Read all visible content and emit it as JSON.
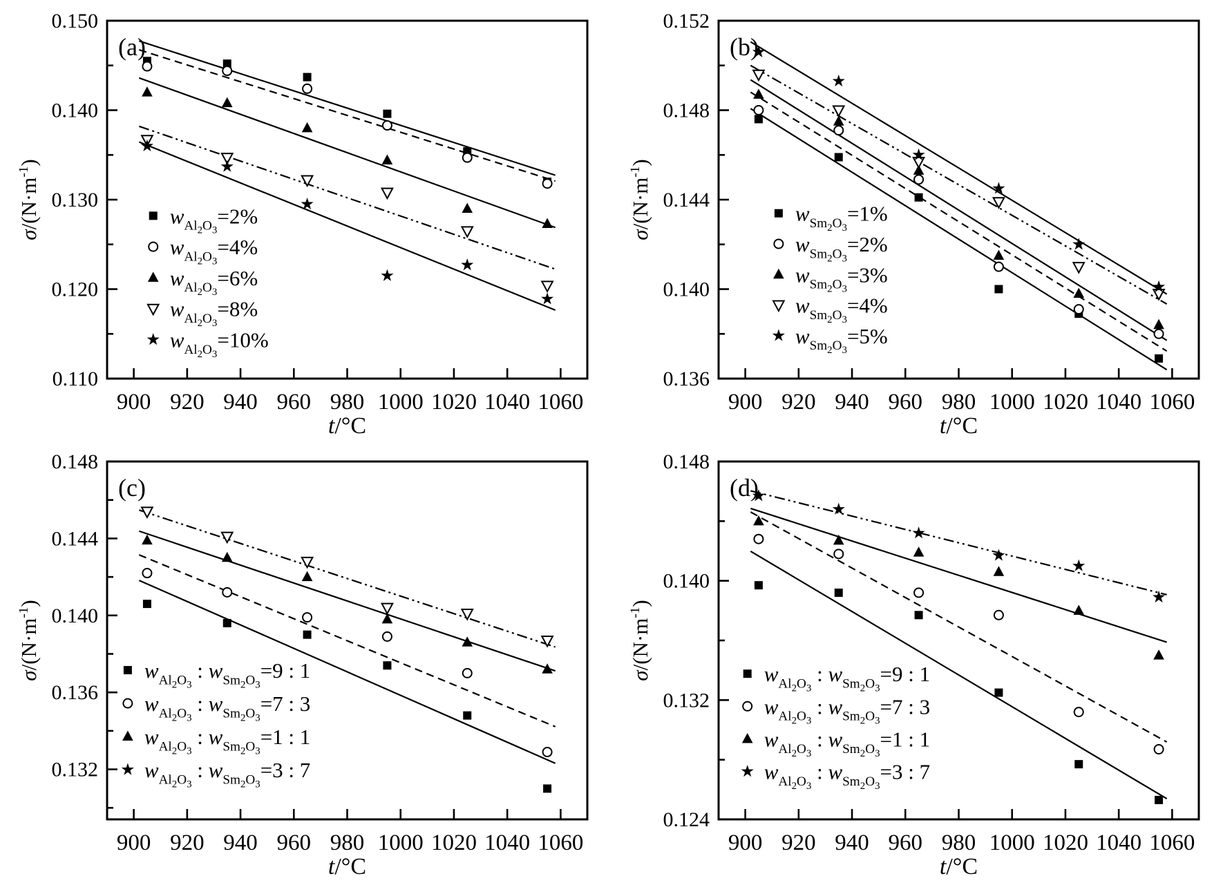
{
  "figure": {
    "background": "#ffffff",
    "ink": "#000000",
    "description": "Four-panel scatter figure: surface tension vs temperature for flux compositions",
    "panel_ids": [
      "a",
      "b",
      "c",
      "d"
    ]
  },
  "chart_data": [
    {
      "id": "a",
      "type": "scatter",
      "panel_label": "(a)",
      "xlabel": [
        {
          "s": "i",
          "t": "t"
        },
        {
          "s": "n",
          "t": "/°C"
        }
      ],
      "ylabel": [
        {
          "s": "i",
          "t": "σ"
        },
        {
          "s": "n",
          "t": "/(N·m"
        },
        {
          "s": "sup",
          "t": "-1"
        },
        {
          "s": "n",
          "t": ")"
        }
      ],
      "xlim": [
        890,
        1070
      ],
      "ylim": [
        0.11,
        0.15
      ],
      "xticks": [
        {
          "v": 900,
          "label": "900"
        },
        {
          "v": 920,
          "label": "920"
        },
        {
          "v": 940,
          "label": "940"
        },
        {
          "v": 960,
          "label": "960"
        },
        {
          "v": 980,
          "label": "980"
        },
        {
          "v": 1000,
          "label": "1000"
        },
        {
          "v": 1020,
          "label": "1020"
        },
        {
          "v": 1040,
          "label": "1040"
        },
        {
          "v": 1060,
          "label": "1060"
        }
      ],
      "yticks_major": [
        {
          "v": 0.11,
          "label": "0.110"
        },
        {
          "v": 0.12,
          "label": "0.120"
        },
        {
          "v": 0.13,
          "label": "0.130"
        },
        {
          "v": 0.14,
          "label": "0.140"
        },
        {
          "v": 0.15,
          "label": "0.150"
        }
      ],
      "yticks_minor": [
        0.115,
        0.125,
        0.135,
        0.145
      ],
      "x": [
        905,
        935,
        965,
        995,
        1025,
        1055
      ],
      "fit_span": [
        902,
        1058
      ],
      "legend": {
        "x_frac": 0.096,
        "y_frac_start": 0.545,
        "row_step_frac": 0.0865
      },
      "series": [
        {
          "name": "w(Al2O3)=2%",
          "marker": "square",
          "line": "solid",
          "label": [
            {
              "s": "i",
              "t": "w"
            },
            {
              "s": "sub",
              "t": "Al2O3"
            },
            {
              "s": "n",
              "t": "=2%"
            }
          ],
          "values": [
            0.1455,
            0.1452,
            0.1437,
            0.1396,
            0.1354,
            0.132
          ]
        },
        {
          "name": "w(Al2O3)=4%",
          "marker": "circle-open",
          "line": "dashed",
          "label": [
            {
              "s": "i",
              "t": "w"
            },
            {
              "s": "sub",
              "t": "Al2O3"
            },
            {
              "s": "n",
              "t": "=4%"
            }
          ],
          "values": [
            0.1449,
            0.1444,
            0.1424,
            0.1383,
            0.1347,
            0.1318
          ]
        },
        {
          "name": "w(Al2O3)=6%",
          "marker": "triangle-up",
          "line": "solid",
          "label": [
            {
              "s": "i",
              "t": "w"
            },
            {
              "s": "sub",
              "t": "Al2O3"
            },
            {
              "s": "n",
              "t": "=6%"
            }
          ],
          "values": [
            0.142,
            0.1408,
            0.138,
            0.1344,
            0.129,
            0.1273
          ]
        },
        {
          "name": "w(Al2O3)=8%",
          "marker": "triangle-down-open",
          "line": "dashdot",
          "label": [
            {
              "s": "i",
              "t": "w"
            },
            {
              "s": "sub",
              "t": "Al2O3"
            },
            {
              "s": "n",
              "t": "=8%"
            }
          ],
          "values": [
            0.1367,
            0.1347,
            0.1322,
            0.1308,
            0.1265,
            0.1204
          ]
        },
        {
          "name": "w(Al2O3)=10%",
          "marker": "star",
          "line": "solid",
          "label": [
            {
              "s": "i",
              "t": "w"
            },
            {
              "s": "sub",
              "t": "Al2O3"
            },
            {
              "s": "n",
              "t": "=10%"
            }
          ],
          "values": [
            0.136,
            0.1337,
            0.1295,
            0.1215,
            0.1227,
            0.1189
          ]
        }
      ]
    },
    {
      "id": "b",
      "type": "scatter",
      "panel_label": "(b)",
      "xlabel": [
        {
          "s": "i",
          "t": "t"
        },
        {
          "s": "n",
          "t": "/°C"
        }
      ],
      "ylabel": [
        {
          "s": "i",
          "t": "σ"
        },
        {
          "s": "n",
          "t": "/(N·m"
        },
        {
          "s": "sup",
          "t": "-1"
        },
        {
          "s": "n",
          "t": ")"
        }
      ],
      "xlim": [
        890,
        1070
      ],
      "ylim": [
        0.136,
        0.152
      ],
      "xticks": [
        {
          "v": 900,
          "label": "900"
        },
        {
          "v": 920,
          "label": "920"
        },
        {
          "v": 940,
          "label": "940"
        },
        {
          "v": 960,
          "label": "960"
        },
        {
          "v": 980,
          "label": "980"
        },
        {
          "v": 1000,
          "label": "1000"
        },
        {
          "v": 1020,
          "label": "1020"
        },
        {
          "v": 1040,
          "label": "1040"
        },
        {
          "v": 1060,
          "label": "1060"
        }
      ],
      "yticks_major": [
        {
          "v": 0.136,
          "label": "0.136"
        },
        {
          "v": 0.14,
          "label": "0.140"
        },
        {
          "v": 0.144,
          "label": "0.144"
        },
        {
          "v": 0.148,
          "label": "0.148"
        },
        {
          "v": 0.152,
          "label": "0.152"
        }
      ],
      "yticks_minor": [
        0.138,
        0.142,
        0.146,
        0.15
      ],
      "x": [
        905,
        935,
        965,
        995,
        1025,
        1055
      ],
      "fit_span": [
        902,
        1058
      ],
      "legend": {
        "x_frac": 0.125,
        "y_frac_start": 0.538,
        "row_step_frac": 0.0855
      },
      "series": [
        {
          "name": "w(Sm2O3)=1%",
          "marker": "square",
          "line": "solid",
          "label": [
            {
              "s": "i",
              "t": "w"
            },
            {
              "s": "sub",
              "t": "Sm2O3"
            },
            {
              "s": "n",
              "t": "=1%"
            }
          ],
          "values": [
            0.1476,
            0.1459,
            0.1441,
            0.14,
            0.1389,
            0.1369
          ]
        },
        {
          "name": "w(Sm2O3)=2%",
          "marker": "circle-open",
          "line": "dashed",
          "label": [
            {
              "s": "i",
              "t": "w"
            },
            {
              "s": "sub",
              "t": "Sm2O3"
            },
            {
              "s": "n",
              "t": "=2%"
            }
          ],
          "values": [
            0.148,
            0.1471,
            0.1449,
            0.141,
            0.1391,
            0.138
          ]
        },
        {
          "name": "w(Sm2O3)=3%",
          "marker": "triangle-up",
          "line": "solid",
          "label": [
            {
              "s": "i",
              "t": "w"
            },
            {
              "s": "sub",
              "t": "Sm2O3"
            },
            {
              "s": "n",
              "t": "=3%"
            }
          ],
          "values": [
            0.1487,
            0.1475,
            0.1453,
            0.1415,
            0.1398,
            0.1384
          ]
        },
        {
          "name": "w(Sm2O3)=4%",
          "marker": "triangle-down-open",
          "line": "dashdot",
          "label": [
            {
              "s": "i",
              "t": "w"
            },
            {
              "s": "sub",
              "t": "Sm2O3"
            },
            {
              "s": "n",
              "t": "=4%"
            }
          ],
          "values": [
            0.1496,
            0.148,
            0.1457,
            0.1439,
            0.141,
            0.1398
          ]
        },
        {
          "name": "w(Sm2O3)=5%",
          "marker": "star",
          "line": "solid",
          "label": [
            {
              "s": "i",
              "t": "w"
            },
            {
              "s": "sub",
              "t": "Sm2O3"
            },
            {
              "s": "n",
              "t": "=5%"
            }
          ],
          "values": [
            0.1506,
            0.1493,
            0.146,
            0.1445,
            0.142,
            0.1401
          ]
        }
      ]
    },
    {
      "id": "c",
      "type": "scatter",
      "panel_label": "(c)",
      "xlabel": [
        {
          "s": "i",
          "t": "t"
        },
        {
          "s": "n",
          "t": "/°C"
        }
      ],
      "ylabel": [
        {
          "s": "i",
          "t": "σ"
        },
        {
          "s": "n",
          "t": "/(N·m"
        },
        {
          "s": "sup",
          "t": "-1"
        },
        {
          "s": "n",
          "t": ")"
        }
      ],
      "xlim": [
        890,
        1070
      ],
      "ylim": [
        0.1294,
        0.148
      ],
      "xticks": [
        {
          "v": 900,
          "label": "900"
        },
        {
          "v": 920,
          "label": "920"
        },
        {
          "v": 940,
          "label": "940"
        },
        {
          "v": 960,
          "label": "960"
        },
        {
          "v": 980,
          "label": "980"
        },
        {
          "v": 1000,
          "label": "1000"
        },
        {
          "v": 1020,
          "label": "1020"
        },
        {
          "v": 1040,
          "label": "1040"
        },
        {
          "v": 1060,
          "label": "1060"
        }
      ],
      "yticks_major": [
        {
          "v": 0.132,
          "label": "0.132"
        },
        {
          "v": 0.136,
          "label": "0.136"
        },
        {
          "v": 0.14,
          "label": "0.140"
        },
        {
          "v": 0.144,
          "label": "0.144"
        },
        {
          "v": 0.148,
          "label": "0.148"
        }
      ],
      "yticks_minor": [
        0.13,
        0.134,
        0.138,
        0.142,
        0.146
      ],
      "x": [
        905,
        935,
        965,
        995,
        1025,
        1055
      ],
      "fit_span": [
        902,
        1058
      ],
      "legend": {
        "x_frac": 0.043,
        "y_frac_start": 0.583,
        "row_step_frac": 0.0927
      },
      "series": [
        {
          "name": "w(Al2O3):w(Sm2O3)=9:1",
          "marker": "square",
          "line": "solid",
          "label": [
            {
              "s": "i",
              "t": "w"
            },
            {
              "s": "sub",
              "t": "Al2O3"
            },
            {
              "s": "n",
              "t": " : "
            },
            {
              "s": "i",
              "t": "w"
            },
            {
              "s": "sub",
              "t": "Sm2O3"
            },
            {
              "s": "n",
              "t": "=9 : 1"
            }
          ],
          "values": [
            0.1406,
            0.1396,
            0.139,
            0.1374,
            0.1348,
            0.131
          ]
        },
        {
          "name": "w(Al2O3):w(Sm2O3)=7:3",
          "marker": "circle-open",
          "line": "dashed",
          "label": [
            {
              "s": "i",
              "t": "w"
            },
            {
              "s": "sub",
              "t": "Al2O3"
            },
            {
              "s": "n",
              "t": " : "
            },
            {
              "s": "i",
              "t": "w"
            },
            {
              "s": "sub",
              "t": "Sm2O3"
            },
            {
              "s": "n",
              "t": "=7 : 3"
            }
          ],
          "values": [
            0.1422,
            0.1412,
            0.1399,
            0.1389,
            0.137,
            0.1329
          ]
        },
        {
          "name": "w(Al2O3):w(Sm2O3)=1:1",
          "marker": "triangle-up",
          "line": "solid",
          "label": [
            {
              "s": "i",
              "t": "w"
            },
            {
              "s": "sub",
              "t": "Al2O3"
            },
            {
              "s": "n",
              "t": " : "
            },
            {
              "s": "i",
              "t": "w"
            },
            {
              "s": "sub",
              "t": "Sm2O3"
            },
            {
              "s": "n",
              "t": "=1 : 1"
            }
          ],
          "values": [
            0.1439,
            0.143,
            0.142,
            0.1398,
            0.1386,
            0.1372
          ]
        },
        {
          "name": "w(Al2O3):w(Sm2O3)=3:7",
          "marker": "triangle-down-open",
          "legend_marker": "star",
          "line": "dashdot",
          "label": [
            {
              "s": "i",
              "t": "w"
            },
            {
              "s": "sub",
              "t": "Al2O3"
            },
            {
              "s": "n",
              "t": " : "
            },
            {
              "s": "i",
              "t": "w"
            },
            {
              "s": "sub",
              "t": "Sm2O3"
            },
            {
              "s": "n",
              "t": "=3 : 7"
            }
          ],
          "values": [
            0.1454,
            0.1441,
            0.1428,
            0.1404,
            0.1401,
            0.1387
          ]
        }
      ]
    },
    {
      "id": "d",
      "type": "scatter",
      "panel_label": "(d)",
      "xlabel": [
        {
          "s": "i",
          "t": "t"
        },
        {
          "s": "n",
          "t": "/°C"
        }
      ],
      "ylabel": [
        {
          "s": "i",
          "t": "σ"
        },
        {
          "s": "n",
          "t": "/(N·m"
        },
        {
          "s": "sup",
          "t": "-1"
        },
        {
          "s": "n",
          "t": ")"
        }
      ],
      "xlim": [
        890,
        1070
      ],
      "ylim": [
        0.124,
        0.148
      ],
      "xticks": [
        {
          "v": 900,
          "label": "900"
        },
        {
          "v": 920,
          "label": "920"
        },
        {
          "v": 940,
          "label": "940"
        },
        {
          "v": 960,
          "label": "960"
        },
        {
          "v": 980,
          "label": "980"
        },
        {
          "v": 1000,
          "label": "1000"
        },
        {
          "v": 1020,
          "label": "1020"
        },
        {
          "v": 1040,
          "label": "1040"
        },
        {
          "v": 1060,
          "label": "1060"
        }
      ],
      "yticks_major": [
        {
          "v": 0.124,
          "label": "0.124"
        },
        {
          "v": 0.132,
          "label": "0.132"
        },
        {
          "v": 0.14,
          "label": "0.140"
        },
        {
          "v": 0.148,
          "label": "0.148"
        }
      ],
      "yticks_minor": [
        0.128,
        0.136,
        0.144
      ],
      "x": [
        905,
        935,
        965,
        995,
        1025,
        1055
      ],
      "fit_span": [
        902,
        1058
      ],
      "legend": {
        "x_frac": 0.06,
        "y_frac_start": 0.593,
        "row_step_frac": 0.091
      },
      "series": [
        {
          "name": "w(Al2O3):w(Sm2O3)=9:1",
          "marker": "square",
          "line": "solid",
          "label": [
            {
              "s": "i",
              "t": "w"
            },
            {
              "s": "sub",
              "t": "Al2O3"
            },
            {
              "s": "n",
              "t": " : "
            },
            {
              "s": "i",
              "t": "w"
            },
            {
              "s": "sub",
              "t": "Sm2O3"
            },
            {
              "s": "n",
              "t": "=9 : 1"
            }
          ],
          "values": [
            0.1397,
            0.1392,
            0.1377,
            0.1325,
            0.1277,
            0.1253
          ]
        },
        {
          "name": "w(Al2O3):w(Sm2O3)=7:3",
          "marker": "circle-open",
          "line": "dashed",
          "label": [
            {
              "s": "i",
              "t": "w"
            },
            {
              "s": "sub",
              "t": "Al2O3"
            },
            {
              "s": "n",
              "t": " : "
            },
            {
              "s": "i",
              "t": "w"
            },
            {
              "s": "sub",
              "t": "Sm2O3"
            },
            {
              "s": "n",
              "t": "=7 : 3"
            }
          ],
          "values": [
            0.1428,
            0.1418,
            0.1392,
            0.1377,
            0.1312,
            0.1287
          ]
        },
        {
          "name": "w(Al2O3):w(Sm2O3)=1:1",
          "marker": "triangle-up",
          "line": "solid",
          "label": [
            {
              "s": "i",
              "t": "w"
            },
            {
              "s": "sub",
              "t": "Al2O3"
            },
            {
              "s": "n",
              "t": " : "
            },
            {
              "s": "i",
              "t": "w"
            },
            {
              "s": "sub",
              "t": "Sm2O3"
            },
            {
              "s": "n",
              "t": "=1 : 1"
            }
          ],
          "values": [
            0.144,
            0.1427,
            0.1419,
            0.1406,
            0.138,
            0.135
          ]
        },
        {
          "name": "w(Al2O3):w(Sm2O3)=3:7",
          "marker": "star",
          "line": "dashdot",
          "label": [
            {
              "s": "i",
              "t": "w"
            },
            {
              "s": "sub",
              "t": "Al2O3"
            },
            {
              "s": "n",
              "t": " : "
            },
            {
              "s": "i",
              "t": "w"
            },
            {
              "s": "sub",
              "t": "Sm2O3"
            },
            {
              "s": "n",
              "t": "=3 : 7"
            }
          ],
          "values": [
            0.1457,
            0.1448,
            0.1432,
            0.1417,
            0.141,
            0.1389
          ]
        }
      ]
    }
  ]
}
